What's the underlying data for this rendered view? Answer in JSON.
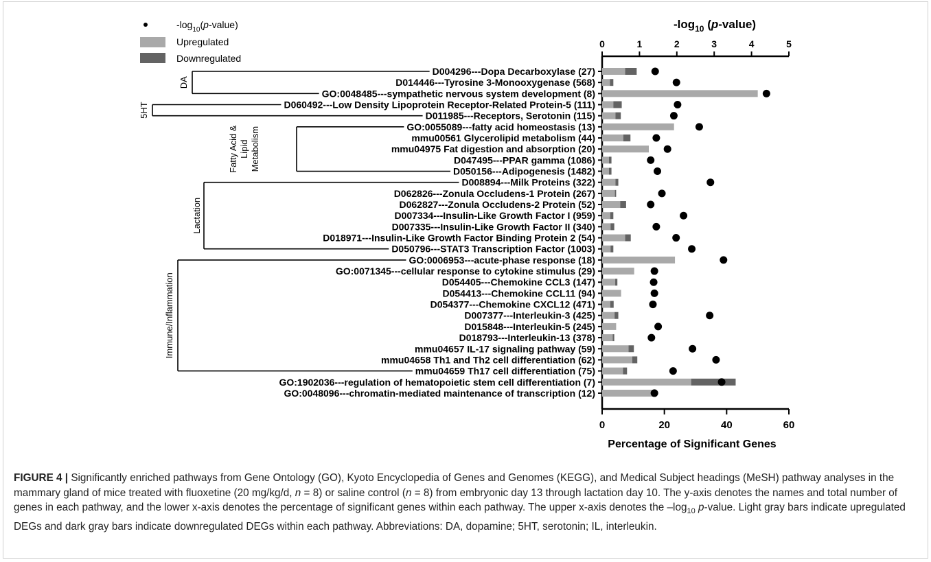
{
  "chart_data": {
    "type": "bar",
    "top_axis": {
      "label_prefix": "-log",
      "label_sub": "10",
      "label_open": " (",
      "label_italic": "p",
      "label_close": "-value)",
      "ticks": [
        "0",
        "1",
        "2",
        "3",
        "4",
        "5"
      ],
      "range": [
        0,
        5
      ]
    },
    "bottom_axis": {
      "label": "Percentage of Significant  Genes",
      "ticks": [
        "0",
        "20",
        "40",
        "60"
      ],
      "range": [
        0,
        60
      ]
    },
    "legend": {
      "position": "top-left",
      "dot_label_prefix": "-log",
      "dot_label_sub": "10",
      "dot_label_open": "(",
      "dot_label_italic": "p",
      "dot_label_close": "-value)",
      "up_label": "Upregulated",
      "down_label": "Downregulated"
    },
    "colors": {
      "up": "#a9a9a9",
      "down": "#636363",
      "dot": "#000000"
    },
    "categories": [
      "D004296---Dopa Decarboxylase (27)",
      "D014446---Tyrosine 3-Monooxygenase (568)",
      "GO:0048485---sympathetic nervous system development (8)",
      "D060492---Low Density Lipoprotein Receptor-Related Protein-5 (111)",
      "D011985---Receptors, Serotonin (115)",
      "GO:0055089---fatty acid homeostasis (13)",
      "mmu00561 Glycerolipid metabolism (44)",
      "mmu04975 Fat digestion and absorption (20)",
      "D047495---PPAR gamma (1086)",
      "D050156---Adipogenesis (1482)",
      "D008894---Milk Proteins (322)",
      "D062826---Zonula Occludens-1 Protein (267)",
      "D062827---Zonula Occludens-2 Protein (52)",
      "D007334---Insulin-Like Growth Factor I (959)",
      "D007335---Insulin-Like Growth Factor II (340)",
      "D018971---Insulin-Like Growth Factor Binding Protein 2 (54)",
      "D050796---STAT3 Transcription Factor (1003)",
      "GO:0006953---acute-phase response (18)",
      "GO:0071345---cellular response to cytokine stimulus (29)",
      "D054405---Chemokine CCL3 (147)",
      "D054413---Chemokine CCL11 (94)",
      "D054377---Chemokine CXCL12 (471)",
      "D007377---Interleukin-3 (425)",
      "D015848---Interleukin-5 (245)",
      "D018793---Interleukin-13 (378)",
      "mmu04657 IL-17 signaling pathway (59)",
      "mmu04658 Th1 and Th2 cell differentiation (62)",
      "mmu04659 Th17 cell differentiation (75)",
      "GO:1902036---regulation of hematopoietic stem cell differentiation (7)",
      "GO:0048096---chromatin-mediated maintenance of transcription (12)"
    ],
    "series": [
      {
        "name": "Upregulated",
        "values": [
          7.4,
          2.5,
          50,
          3.6,
          4.3,
          23.1,
          6.8,
          15.0,
          2.2,
          2.2,
          4.3,
          4.1,
          5.8,
          2.6,
          2.7,
          7.4,
          2.7,
          23.4,
          10.3,
          4.2,
          6.1,
          2.6,
          4.0,
          4.5,
          3.4,
          8.5,
          9.7,
          6.7,
          28.6,
          16.7
        ]
      },
      {
        "name": "Downregulated",
        "values": [
          3.7,
          1.1,
          0,
          2.7,
          1.7,
          0,
          2.3,
          0,
          0.8,
          0.8,
          0.9,
          0.4,
          1.9,
          1.0,
          1.2,
          1.8,
          0.9,
          0,
          0,
          0.7,
          0,
          1.1,
          1.2,
          0,
          0.5,
          1.7,
          1.6,
          1.3,
          14.3,
          0
        ]
      }
    ],
    "neg_log10_p": [
      1.42,
      1.99,
      4.4,
      2.02,
      1.92,
      2.6,
      1.45,
      1.75,
      1.3,
      1.48,
      2.9,
      1.6,
      1.3,
      2.18,
      1.45,
      1.98,
      2.4,
      3.25,
      1.4,
      1.38,
      1.4,
      1.36,
      2.88,
      1.5,
      1.32,
      2.42,
      3.05,
      1.9,
      3.2,
      1.4
    ],
    "groups": [
      {
        "label": "DA",
        "first": 0,
        "last": 2
      },
      {
        "label": "5HT",
        "first": 3,
        "last": 4
      },
      {
        "label_lines": [
          "Fatty Acid &",
          "Lipid",
          "Metabolism"
        ],
        "first": 5,
        "last": 9
      },
      {
        "label": "Lactation",
        "first": 10,
        "last": 16
      },
      {
        "label": "Immune/Inflammation",
        "first": 17,
        "last": 27
      }
    ]
  },
  "caption": {
    "figure_label": "FIGURE 4 |",
    "text_1": " Significantly enriched pathways from Gene Ontology (GO), Kyoto Encyclopedia of Genes and Genomes (KEGG), and Medical Subject headings (MeSH) pathway analyses in the mammary gland of mice treated with fluoxetine (20 mg/kg/d, ",
    "n1": "n",
    "text_2": " = 8) or saline control (",
    "n2": "n",
    "text_3": " = 8) from embryonic day 13 through lactation day 10. The y-axis denotes the names and total number of genes in each pathway, and the lower x-axis denotes the percentage of significant genes within each pathway. The upper x-axis denotes the –log",
    "sub": "10",
    "text_4": " ",
    "p": "p",
    "text_5": "-value. Light gray bars indicate upregulated DEGs and dark gray bars indicate downregulated DEGs within each pathway. Abbreviations: DA, dopamine; 5HT, serotonin; IL, interleukin."
  }
}
